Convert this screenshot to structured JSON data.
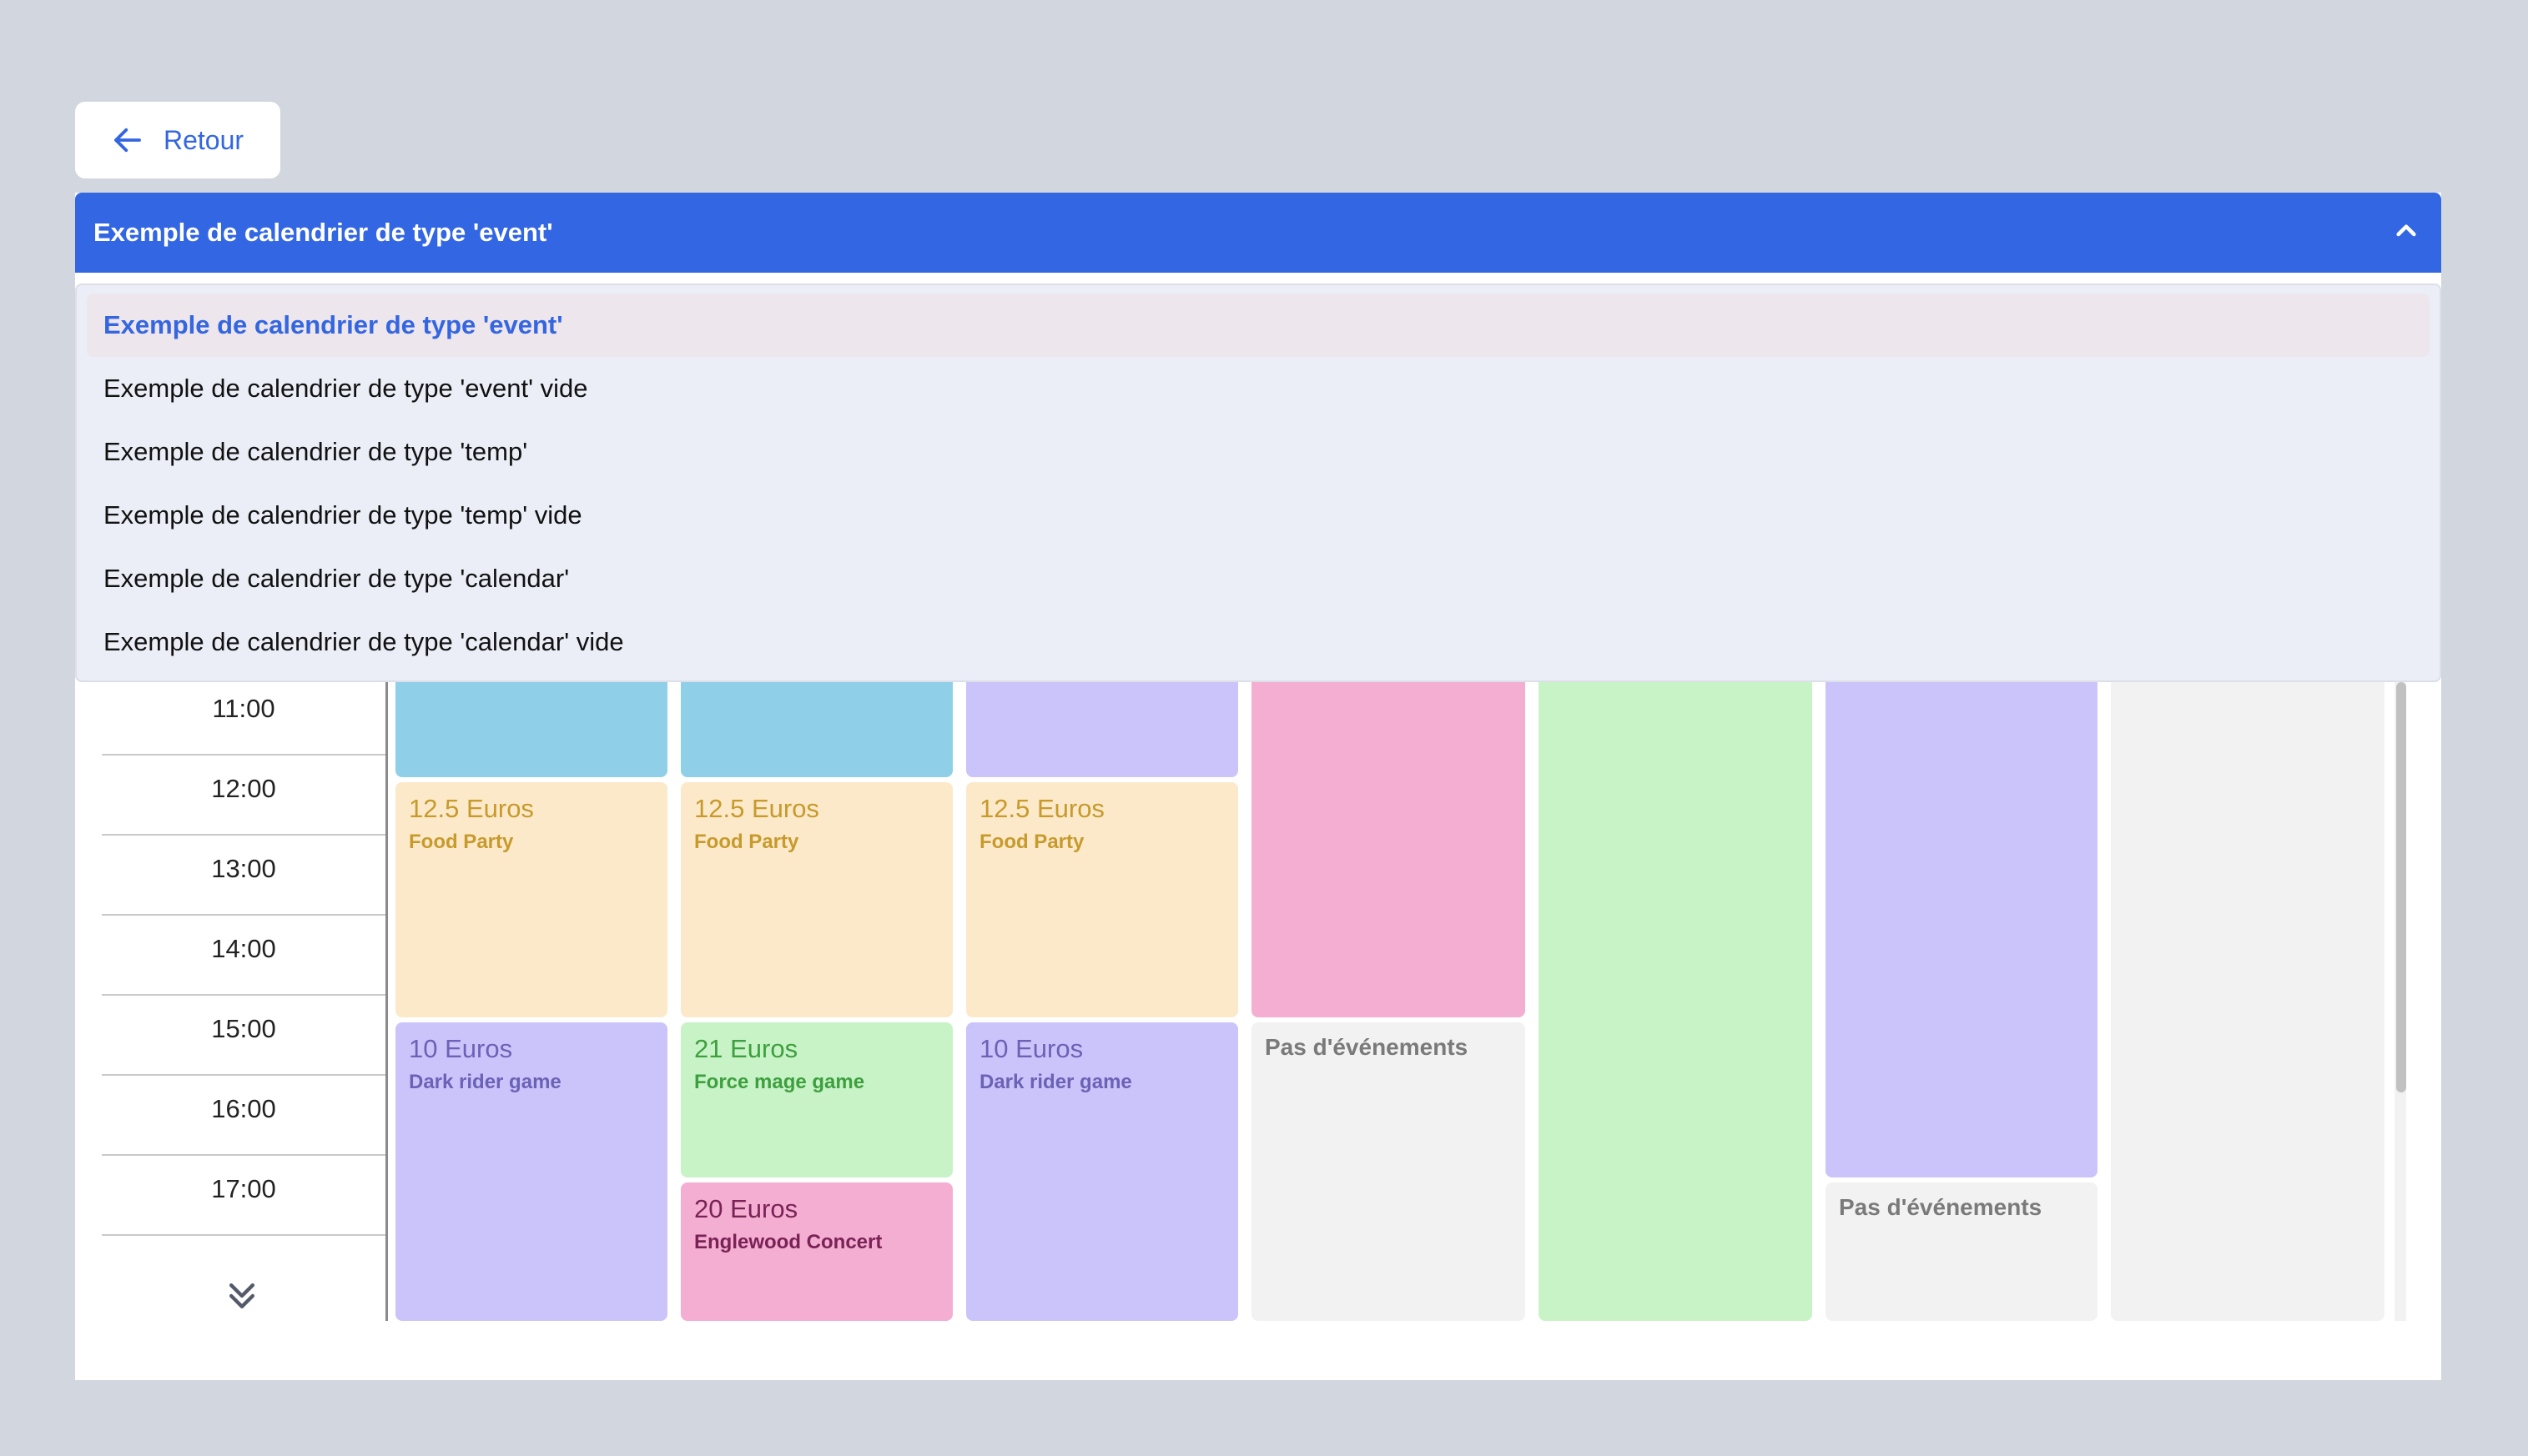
{
  "back_button": {
    "label": "Retour",
    "icon": "arrow-left-icon"
  },
  "select": {
    "current": "Exemple de calendrier de type 'event'",
    "toggle_icon": "chevron-up-icon",
    "options": [
      "Exemple de calendrier de type 'event'",
      "Exemple de calendrier de type 'event' vide",
      "Exemple de calendrier de type 'temp'",
      "Exemple de calendrier de type 'temp' vide",
      "Exemple de calendrier de type 'calendar'",
      "Exemple de calendrier de type 'calendar' vide"
    ]
  },
  "times": [
    "11:00",
    "12:00",
    "13:00",
    "14:00",
    "15:00",
    "16:00",
    "17:00"
  ],
  "scroll_icon": "double-chevron-down-icon",
  "events": {
    "d1_yellow": {
      "price": "12.5 Euros",
      "name": "Food Party"
    },
    "d1_purple": {
      "price": "10 Euros",
      "name": "Dark rider game"
    },
    "d2_yellow": {
      "price": "12.5 Euros",
      "name": "Food Party"
    },
    "d2_green": {
      "price": "21 Euros",
      "name": "Force mage game"
    },
    "d2_pink": {
      "price": "20 Euros",
      "name": "Englewood Concert"
    },
    "d3_yellow": {
      "price": "12.5 Euros",
      "name": "Food Party"
    },
    "d3_purple": {
      "price": "10 Euros",
      "name": "Dark rider game"
    }
  },
  "empty_label": "Pas d'événements",
  "colors": {
    "accent": "#3366e3",
    "blue": "#8fd0e8",
    "yellow": "#fce9c9",
    "purple": "#cbc4fa",
    "green": "#c8f3c7",
    "pink": "#f3aed2",
    "gray": "#f2f2f2"
  }
}
